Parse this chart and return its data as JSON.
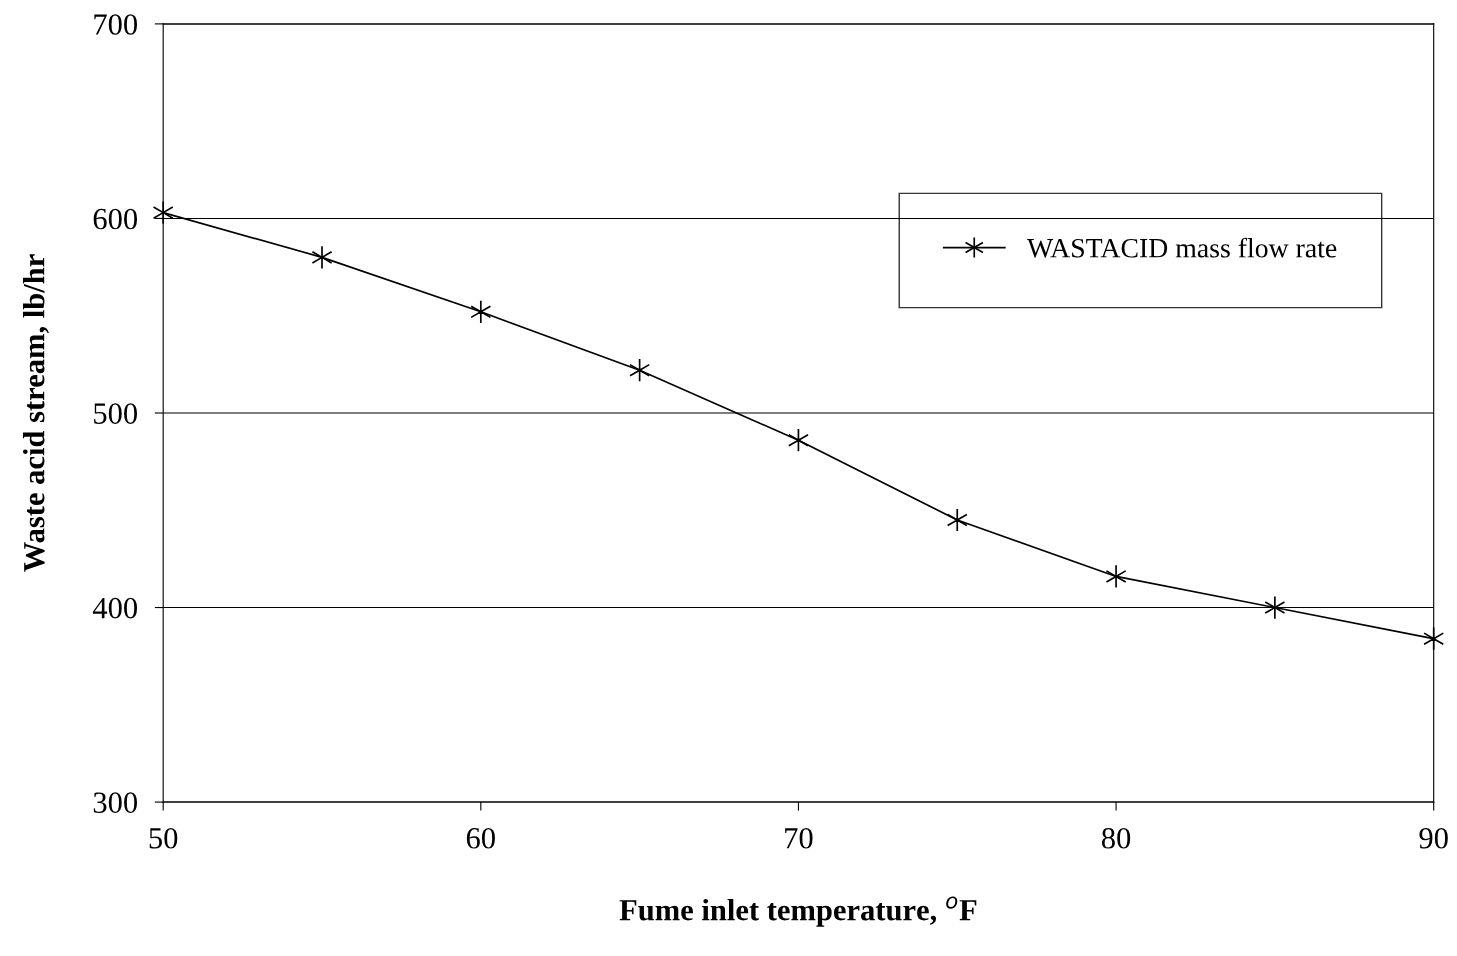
{
  "chart_data": {
    "type": "line",
    "xlabel": "Fume inlet temperature, $^{o}$F",
    "ylabel": "Waste acid stream, lb/hr",
    "x": [
      50,
      55,
      60,
      65,
      70,
      75,
      80,
      85,
      90
    ],
    "series": [
      {
        "name": "WASTACID mass flow rate",
        "color": "#000000",
        "values": [
          603,
          580,
          552,
          522,
          486,
          445,
          416,
          400,
          384
        ]
      }
    ],
    "xlim": [
      50,
      90
    ],
    "xticks": [
      50,
      60,
      70,
      80,
      90
    ],
    "ylim": [
      300,
      700
    ],
    "yticks": [
      300,
      400,
      500,
      600,
      700
    ],
    "grid": "y",
    "legend": "top right",
    "marker": "cross",
    "line_style": "solid"
  }
}
